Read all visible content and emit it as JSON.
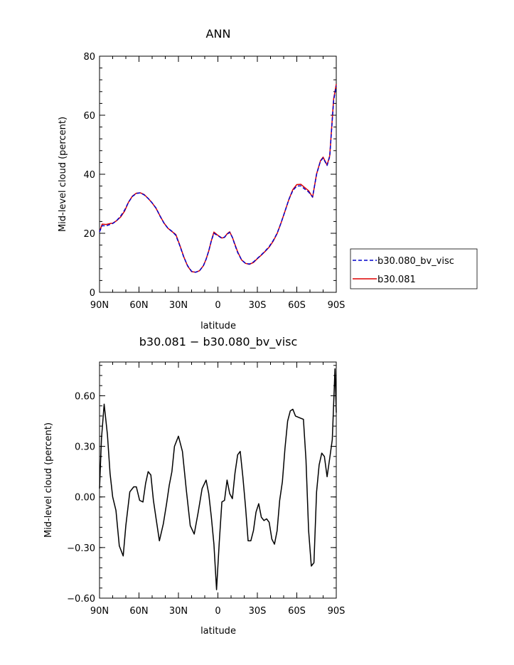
{
  "chart_data": [
    {
      "type": "line",
      "title": "ANN",
      "xlabel": "latitude",
      "ylabel": "Mid-level cloud (percent)",
      "xlim": [
        -90,
        90
      ],
      "ylim": [
        0,
        80
      ],
      "xticks": [
        -90,
        -60,
        -30,
        0,
        30,
        60,
        90
      ],
      "xticklabels": [
        "90N",
        "60N",
        "30N",
        "0",
        "30S",
        "60S",
        "90S"
      ],
      "yticks": [
        0,
        20,
        40,
        60,
        80
      ],
      "yticklabels": [
        "0",
        "20",
        "40",
        "60",
        "80"
      ],
      "legend_placement": "right",
      "series": [
        {
          "name": "b30.080_bv_visc",
          "color": "#0000cc",
          "dash": "dashed",
          "x": [
            -90,
            -88,
            -85,
            -82,
            -80,
            -77,
            -74,
            -71,
            -68,
            -65,
            -62,
            -59,
            -56,
            -53,
            -50,
            -47,
            -44,
            -41,
            -38,
            -35,
            -32,
            -29,
            -26,
            -23,
            -20,
            -17,
            -14,
            -11,
            -9,
            -7,
            -5,
            -3,
            0,
            3,
            5,
            7,
            9,
            11,
            13,
            15,
            18,
            21,
            24,
            27,
            30,
            33,
            36,
            39,
            42,
            45,
            48,
            51,
            54,
            57,
            60,
            63,
            66,
            69,
            72,
            75,
            78,
            80,
            83,
            85,
            88,
            90
          ],
          "y": [
            20.5,
            22.6,
            22.5,
            23.0,
            23.3,
            24.3,
            25.8,
            27.8,
            30.5,
            32.5,
            33.5,
            33.7,
            33.0,
            31.8,
            30.3,
            28.5,
            25.8,
            23.5,
            21.7,
            20.7,
            19.3,
            15.8,
            12.0,
            9.0,
            7.1,
            6.8,
            7.3,
            9.0,
            11.2,
            14.0,
            17.5,
            20.0,
            19.2,
            18.3,
            18.7,
            19.7,
            20.3,
            18.6,
            16.0,
            13.5,
            11.0,
            9.8,
            9.6,
            10.3,
            11.5,
            12.7,
            14.0,
            15.5,
            17.5,
            20.0,
            23.5,
            27.5,
            31.5,
            34.5,
            36.0,
            36.1,
            35.0,
            34.0,
            32.3,
            40.0,
            44.5,
            45.5,
            43.0,
            46.0,
            65.0,
            70.0
          ]
        },
        {
          "name": "b30.081",
          "color": "#dd0000",
          "dash": "solid",
          "x": [
            -90,
            -88,
            -85,
            -82,
            -80,
            -77,
            -74,
            -71,
            -68,
            -65,
            -62,
            -59,
            -56,
            -53,
            -50,
            -47,
            -44,
            -41,
            -38,
            -35,
            -32,
            -29,
            -26,
            -23,
            -20,
            -17,
            -14,
            -11,
            -9,
            -7,
            -5,
            -3,
            0,
            3,
            5,
            7,
            9,
            11,
            13,
            15,
            18,
            21,
            24,
            27,
            30,
            33,
            36,
            39,
            42,
            45,
            48,
            51,
            54,
            57,
            60,
            63,
            66,
            69,
            72,
            75,
            78,
            80,
            83,
            85,
            88,
            90
          ],
          "y": [
            20.5,
            23.1,
            23.0,
            23.3,
            23.4,
            24.3,
            25.5,
            27.5,
            30.5,
            32.6,
            33.6,
            33.7,
            33.1,
            31.8,
            30.3,
            28.4,
            25.9,
            23.5,
            21.7,
            20.6,
            19.6,
            16.0,
            12.1,
            8.9,
            7.0,
            6.8,
            7.3,
            9.0,
            11.2,
            14.0,
            17.5,
            20.4,
            19.3,
            18.4,
            18.6,
            19.8,
            20.5,
            18.6,
            16.2,
            13.7,
            11.0,
            9.8,
            9.5,
            10.1,
            11.4,
            12.6,
            13.9,
            15.3,
            17.3,
            19.9,
            23.5,
            27.5,
            31.5,
            34.8,
            36.5,
            36.6,
            35.5,
            34.4,
            32.2,
            40.1,
            44.6,
            45.8,
            43.1,
            46.3,
            65.5,
            70.5
          ]
        }
      ]
    },
    {
      "type": "line",
      "title": "b30.081 − b30.080_bv_visc",
      "xlabel": "latitude",
      "ylabel": "Mid-level cloud (percent)",
      "xlim": [
        -90,
        90
      ],
      "ylim": [
        -0.6,
        0.8
      ],
      "xticks": [
        -90,
        -60,
        -30,
        0,
        30,
        60,
        90
      ],
      "xticklabels": [
        "90N",
        "60N",
        "30N",
        "0",
        "30S",
        "60S",
        "90S"
      ],
      "yticks": [
        -0.6,
        -0.3,
        0.0,
        0.3,
        0.6
      ],
      "yticklabels": [
        "−0.60",
        "−0.30",
        "0.00",
        "0.30",
        "0.60"
      ],
      "series": [
        {
          "color": "#000000",
          "dash": "solid",
          "x": [
            -90,
            -88.5,
            -86.5,
            -84,
            -82,
            -80,
            -77.5,
            -75,
            -72,
            -70,
            -67,
            -64,
            -62,
            -59.5,
            -57,
            -55,
            -53,
            -51,
            -49,
            -47,
            -44.5,
            -41.5,
            -39,
            -37,
            -35,
            -33,
            -30,
            -27,
            -24,
            -21,
            -18,
            -15,
            -12,
            -9,
            -7,
            -5,
            -3,
            -1,
            1,
            3,
            5,
            7,
            9,
            11,
            13,
            15,
            17,
            19,
            21,
            23,
            25,
            27,
            29,
            31,
            33,
            35,
            37,
            39,
            41,
            43,
            45,
            47,
            49,
            51,
            53,
            55,
            57,
            59,
            62,
            65,
            67,
            69,
            71,
            73,
            75,
            77,
            79,
            81,
            83,
            85,
            87,
            89,
            90
          ],
          "y": [
            0.05,
            0.35,
            0.55,
            0.37,
            0.14,
            0.0,
            -0.08,
            -0.29,
            -0.35,
            -0.17,
            0.03,
            0.06,
            0.06,
            -0.02,
            -0.03,
            0.08,
            0.15,
            0.13,
            -0.02,
            -0.13,
            -0.26,
            -0.16,
            -0.04,
            0.07,
            0.15,
            0.3,
            0.36,
            0.27,
            0.04,
            -0.17,
            -0.22,
            -0.09,
            0.05,
            0.1,
            0.02,
            -0.12,
            -0.28,
            -0.55,
            -0.27,
            -0.03,
            -0.02,
            0.1,
            0.02,
            -0.01,
            0.14,
            0.25,
            0.27,
            0.12,
            -0.06,
            -0.26,
            -0.26,
            -0.2,
            -0.09,
            -0.04,
            -0.12,
            -0.14,
            -0.13,
            -0.15,
            -0.25,
            -0.28,
            -0.2,
            -0.02,
            0.09,
            0.29,
            0.45,
            0.51,
            0.52,
            0.48,
            0.47,
            0.46,
            0.22,
            -0.2,
            -0.41,
            -0.39,
            0.03,
            0.19,
            0.26,
            0.24,
            0.12,
            0.23,
            0.34,
            0.76,
            0.5
          ]
        }
      ]
    }
  ]
}
